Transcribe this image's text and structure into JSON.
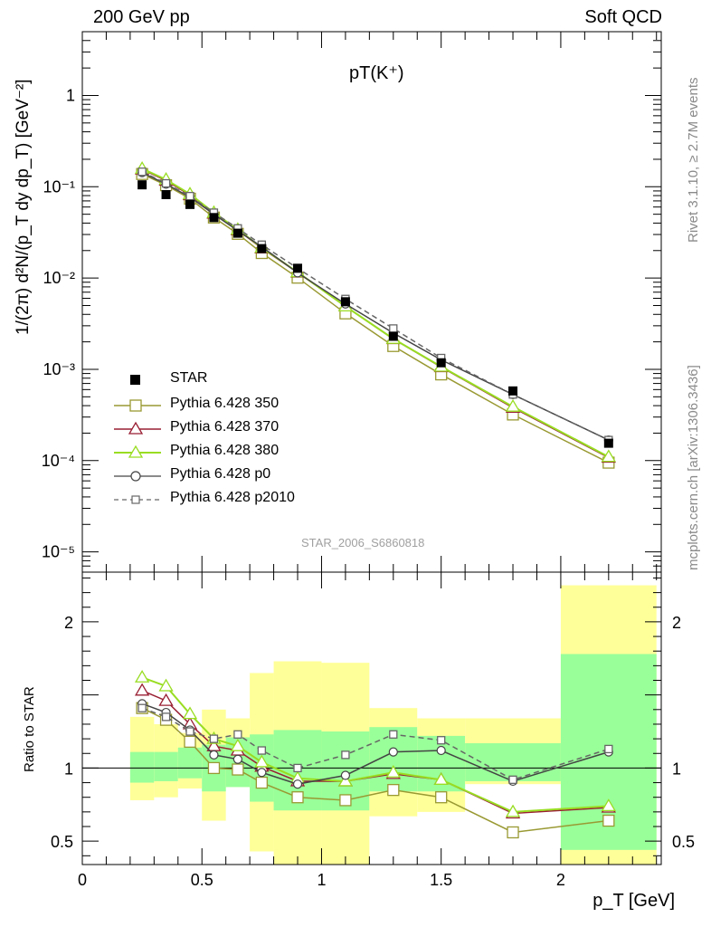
{
  "header": {
    "left_label": "200 GeV pp",
    "right_label": "Soft QCD"
  },
  "side_labels": {
    "top": "Rivet 3.1.10, ≥ 2.7M events",
    "bottom": "mcplots.cern.ch [arXiv:1306.3436]"
  },
  "plot_title": "pT(K⁺)",
  "watermark": "STAR_2006_S6860818",
  "axes": {
    "ylabel_main": "1/(2π) d²N/(p_T dy dp_T) [GeV⁻²]",
    "ylabel_ratio": "Ratio to STAR",
    "xlabel": "p_T [GeV]"
  },
  "chart_data": [
    {
      "type": "line",
      "panel": "main",
      "yscale": "log",
      "xlim": [
        0,
        2.42
      ],
      "ylim": [
        6e-06,
        5
      ],
      "y_ticks": [
        {
          "v": 1e-05,
          "label": "10⁻⁵"
        },
        {
          "v": 0.0001,
          "label": "10⁻⁴"
        },
        {
          "v": 0.001,
          "label": "10⁻³"
        },
        {
          "v": 0.01,
          "label": "10⁻²"
        },
        {
          "v": 0.1,
          "label": "10⁻¹"
        },
        {
          "v": 1,
          "label": "1"
        }
      ],
      "data": {
        "name": "STAR",
        "x": [
          0.25,
          0.35,
          0.45,
          0.55,
          0.65,
          0.75,
          0.9,
          1.1,
          1.3,
          1.5,
          1.8,
          2.2
        ],
        "y": [
          0.105,
          0.082,
          0.064,
          0.046,
          0.031,
          0.021,
          0.0128,
          0.0055,
          0.0023,
          0.00118,
          0.00058,
          0.000155
        ]
      },
      "series": [
        {
          "name": "Pythia 6.428 350",
          "color": "#999933",
          "marker": "square",
          "dash": false,
          "y": [
            0.138,
            0.104,
            0.074,
            0.046,
            0.0305,
            0.0188,
            0.0101,
            0.0041,
            0.0018,
            0.00088,
            0.00032,
            9.5e-05
          ]
        },
        {
          "name": "Pythia 6.428 370",
          "color": "#991f33",
          "marker": "triangle",
          "dash": false,
          "y": [
            0.155,
            0.117,
            0.081,
            0.051,
            0.0335,
            0.0212,
            0.0115,
            0.0049,
            0.00215,
            0.00106,
            0.00038,
            0.000108
          ]
        },
        {
          "name": "Pythia 6.428 380",
          "color": "#99dd22",
          "marker": "triangle",
          "dash": false,
          "y": [
            0.158,
            0.12,
            0.083,
            0.052,
            0.034,
            0.0215,
            0.0116,
            0.0049,
            0.00216,
            0.00107,
            0.00039,
            0.00011
          ]
        },
        {
          "name": "Pythia 6.428 p0",
          "color": "#444444",
          "marker": "circle",
          "dash": false,
          "y": [
            0.143,
            0.107,
            0.077,
            0.05,
            0.033,
            0.022,
            0.0114,
            0.0052,
            0.0025,
            0.00127,
            0.00053,
            0.000168
          ]
        },
        {
          "name": "Pythia 6.428 p2010",
          "color": "#666666",
          "marker": "square",
          "dash": true,
          "y": [
            0.146,
            0.109,
            0.079,
            0.052,
            0.035,
            0.0232,
            0.0128,
            0.0059,
            0.0028,
            0.00133,
            0.00053,
            0.000168
          ]
        }
      ]
    },
    {
      "type": "line",
      "panel": "ratio",
      "ylim": [
        0.34,
        2.34
      ],
      "y_ticks": [
        {
          "v": 0.5,
          "label": "0.5"
        },
        {
          "v": 1,
          "label": "1"
        },
        {
          "v": 2,
          "label": "2"
        }
      ],
      "x_ticks": [
        {
          "v": 0,
          "label": "0"
        },
        {
          "v": 0.5,
          "label": "0.5"
        },
        {
          "v": 1,
          "label": "1"
        },
        {
          "v": 1.5,
          "label": "1.5"
        },
        {
          "v": 2,
          "label": "2"
        }
      ],
      "uncertainty_bands": {
        "x_low": [
          0.2,
          0.3,
          0.4,
          0.5,
          0.6,
          0.7,
          0.8,
          1.0,
          1.2,
          1.4,
          1.6,
          2.0
        ],
        "x_high": [
          0.3,
          0.4,
          0.5,
          0.6,
          0.7,
          0.8,
          1.0,
          1.2,
          1.4,
          1.6,
          2.0,
          2.4
        ],
        "stat_low": [
          0.9,
          0.91,
          0.93,
          0.84,
          0.87,
          0.77,
          0.71,
          0.71,
          0.84,
          0.84,
          0.91,
          0.44
        ],
        "stat_high": [
          1.11,
          1.11,
          1.14,
          1.16,
          1.21,
          1.23,
          1.26,
          1.25,
          1.28,
          1.22,
          1.17,
          1.78
        ],
        "tot_low": [
          0.78,
          0.8,
          0.86,
          0.64,
          0.87,
          0.43,
          0.34,
          0.34,
          0.67,
          0.7,
          0.89,
          0.34
        ],
        "tot_high": [
          1.35,
          1.3,
          1.24,
          1.4,
          1.34,
          1.65,
          1.73,
          1.72,
          1.41,
          1.34,
          1.34,
          2.25
        ],
        "stat_color": "#99ff99",
        "tot_color": "#ffff99"
      },
      "series": [
        {
          "name": "Pythia 6.428 350",
          "color": "#999933",
          "marker": "square",
          "dash": false,
          "y": [
            1.41,
            1.33,
            1.18,
            1.0,
            0.99,
            0.9,
            0.8,
            0.78,
            0.85,
            0.8,
            0.56,
            0.64
          ]
        },
        {
          "name": "Pythia 6.428 370",
          "color": "#991f33",
          "marker": "triangle",
          "dash": false,
          "y": [
            1.53,
            1.46,
            1.3,
            1.15,
            1.12,
            1.01,
            0.91,
            0.91,
            0.96,
            0.92,
            0.69,
            0.73
          ]
        },
        {
          "name": "Pythia 6.428 380",
          "color": "#99dd22",
          "marker": "triangle",
          "dash": false,
          "y": [
            1.62,
            1.56,
            1.37,
            1.2,
            1.15,
            1.04,
            0.93,
            0.91,
            0.97,
            0.92,
            0.7,
            0.74
          ]
        },
        {
          "name": "Pythia 6.428 p0",
          "color": "#444444",
          "marker": "circle",
          "dash": false,
          "y": [
            1.44,
            1.38,
            1.26,
            1.09,
            1.06,
            0.97,
            0.89,
            0.95,
            1.11,
            1.12,
            0.91,
            1.11
          ]
        },
        {
          "name": "Pythia 6.428 p2010",
          "color": "#666666",
          "marker": "square",
          "dash": true,
          "y": [
            1.41,
            1.35,
            1.25,
            1.2,
            1.23,
            1.12,
            1.0,
            1.09,
            1.23,
            1.19,
            0.92,
            1.13
          ]
        }
      ]
    }
  ],
  "legend": [
    {
      "label": "STAR"
    },
    {
      "label": "Pythia 6.428 350"
    },
    {
      "label": "Pythia 6.428 370"
    },
    {
      "label": "Pythia 6.428 380"
    },
    {
      "label": "Pythia 6.428 p0"
    },
    {
      "label": "Pythia 6.428 p2010"
    }
  ]
}
